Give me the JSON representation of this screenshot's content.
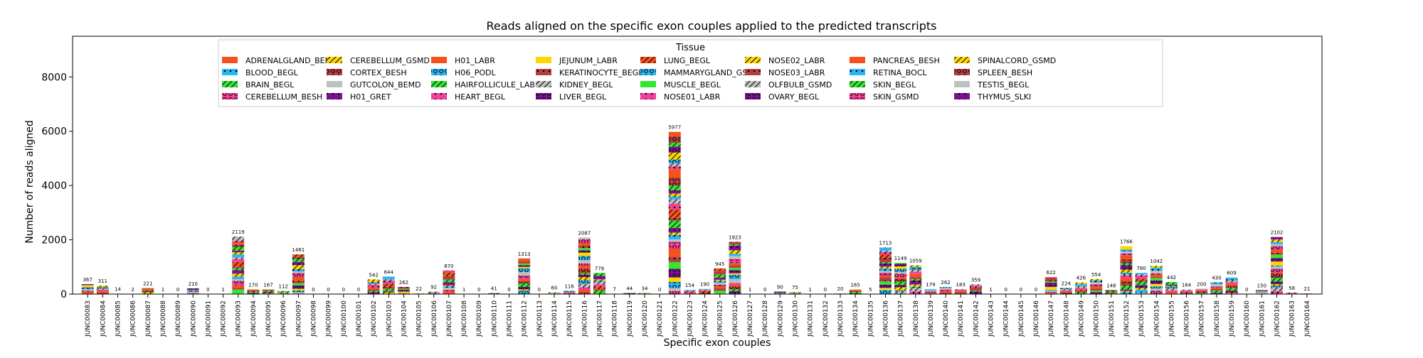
{
  "chart_data": {
    "type": "bar",
    "stacked": true,
    "title": "Reads aligned on the specific exon couples applied to the predicted transcripts",
    "xlabel": "Specific exon couples",
    "ylabel": "Number of reads aligned",
    "ylim": [
      0,
      9500
    ],
    "yticks": [
      0,
      2000,
      4000,
      6000,
      8000
    ],
    "grid": false,
    "legend": {
      "title": "Tissue",
      "placement": "top-center",
      "columns": 9,
      "entries": [
        {
          "name": "ADRENALGLAND_BEMD",
          "color": "#f4511e",
          "hatch": "none"
        },
        {
          "name": "BLOOD_BEGL",
          "color": "#29b6f6",
          "hatch": "dot"
        },
        {
          "name": "BRAIN_BEGL",
          "color": "#33e633",
          "hatch": "slash"
        },
        {
          "name": "CEREBELLUM_BESH",
          "color": "#f43f9a",
          "hatch": "circle"
        },
        {
          "name": "CEREBELLUM_GSMD",
          "color": "#ffd600",
          "hatch": "slash"
        },
        {
          "name": "CORTEX_BESH",
          "color": "#b53f3f",
          "hatch": "circle"
        },
        {
          "name": "GUTCOLON_BEMD",
          "color": "#c0c0c0",
          "hatch": "none"
        },
        {
          "name": "H01_GRET",
          "color": "#7b1192",
          "hatch": "dot"
        },
        {
          "name": "H01_LABR",
          "color": "#f4511e",
          "hatch": "none"
        },
        {
          "name": "H06_PODL",
          "color": "#29b6f6",
          "hatch": "circle"
        },
        {
          "name": "HAIRFOLLICULE_LABR",
          "color": "#33e633",
          "hatch": "slash"
        },
        {
          "name": "HEART_BEGL",
          "color": "#f43f9a",
          "hatch": "dot"
        },
        {
          "name": "JEJUNUM_LABR",
          "color": "#ffd600",
          "hatch": "none"
        },
        {
          "name": "KERATINOCYTE_BEGL",
          "color": "#b53f3f",
          "hatch": "dot"
        },
        {
          "name": "KIDNEY_BEGL",
          "color": "#c0c0c0",
          "hatch": "slash"
        },
        {
          "name": "LIVER_BEGL",
          "color": "#7b1192",
          "hatch": "circle"
        },
        {
          "name": "LUNG_BEGL",
          "color": "#f4511e",
          "hatch": "slash"
        },
        {
          "name": "MAMMARYGLAND_GSMD",
          "color": "#29b6f6",
          "hatch": "circle"
        },
        {
          "name": "MUSCLE_BEGL",
          "color": "#33e633",
          "hatch": "none"
        },
        {
          "name": "NOSE01_LABR",
          "color": "#f43f9a",
          "hatch": "dot"
        },
        {
          "name": "NOSE02_LABR",
          "color": "#ffd600",
          "hatch": "slash"
        },
        {
          "name": "NOSE03_LABR",
          "color": "#b53f3f",
          "hatch": "dot"
        },
        {
          "name": "OLFBULB_GSMD",
          "color": "#c0c0c0",
          "hatch": "slash"
        },
        {
          "name": "OVARY_BEGL",
          "color": "#7b1192",
          "hatch": "circle"
        },
        {
          "name": "PANCREAS_BESH",
          "color": "#f4511e",
          "hatch": "none"
        },
        {
          "name": "RETINA_BOCL",
          "color": "#29b6f6",
          "hatch": "dot"
        },
        {
          "name": "SKIN_BEGL",
          "color": "#33e633",
          "hatch": "slash"
        },
        {
          "name": "SKIN_GSMD",
          "color": "#f43f9a",
          "hatch": "circle"
        },
        {
          "name": "SPINALCORD_GSMD",
          "color": "#ffd600",
          "hatch": "slash"
        },
        {
          "name": "SPLEEN_BESH",
          "color": "#b53f3f",
          "hatch": "circle"
        },
        {
          "name": "TESTIS_BEGL",
          "color": "#c0c0c0",
          "hatch": "none"
        },
        {
          "name": "THYMUS_SLKI",
          "color": "#7b1192",
          "hatch": "dot"
        }
      ]
    },
    "categories": [
      "JUNC00083",
      "JUNC00084",
      "JUNC00085",
      "JUNC00086",
      "JUNC00087",
      "JUNC00088",
      "JUNC00089",
      "JUNC00090",
      "JUNC00091",
      "JUNC00092",
      "JUNC00093",
      "JUNC00094",
      "JUNC00095",
      "JUNC00096",
      "JUNC00097",
      "JUNC00098",
      "JUNC00099",
      "JUNC00100",
      "JUNC00101",
      "JUNC00102",
      "JUNC00103",
      "JUNC00104",
      "JUNC00105",
      "JUNC00106",
      "JUNC00107",
      "JUNC00108",
      "JUNC00109",
      "JUNC00110",
      "JUNC00111",
      "JUNC00112",
      "JUNC00113",
      "JUNC00114",
      "JUNC00115",
      "JUNC00116",
      "JUNC00117",
      "JUNC00118",
      "JUNC00119",
      "JUNC00120",
      "JUNC00121",
      "JUNC00122",
      "JUNC00123",
      "JUNC00124",
      "JUNC00125",
      "JUNC00126",
      "JUNC00127",
      "JUNC00128",
      "JUNC00129",
      "JUNC00130",
      "JUNC00131",
      "JUNC00132",
      "JUNC00133",
      "JUNC00134",
      "JUNC00135",
      "JUNC00136",
      "JUNC00137",
      "JUNC00138",
      "JUNC00139",
      "JUNC00140",
      "JUNC00141",
      "JUNC00142",
      "JUNC00143",
      "JUNC00144",
      "JUNC00145",
      "JUNC00146",
      "JUNC00147",
      "JUNC00148",
      "JUNC00149",
      "JUNC00150",
      "JUNC00151",
      "JUNC00152",
      "JUNC00153",
      "JUNC00154",
      "JUNC00155",
      "JUNC00156",
      "JUNC00157",
      "JUNC00158",
      "JUNC00159",
      "JUNC00160",
      "JUNC00161",
      "JUNC00162",
      "JUNC00163",
      "JUNC00164"
    ],
    "totals": [
      367,
      311,
      14,
      2,
      221,
      1,
      0,
      210,
      0,
      1,
      2119,
      170,
      167,
      112,
      1461,
      0,
      0,
      0,
      0,
      542,
      644,
      262,
      22,
      92,
      870,
      1,
      0,
      41,
      0,
      1313,
      0,
      60,
      116,
      2087,
      778,
      7,
      44,
      34,
      0,
      5977,
      154,
      190,
      945,
      1923,
      1,
      0,
      90,
      75,
      1,
      0,
      20,
      165,
      5,
      1713,
      1149,
      1059,
      179,
      262,
      183,
      359,
      1,
      0,
      0,
      0,
      622,
      224,
      426,
      554,
      148,
      1766,
      780,
      1042,
      442,
      164,
      200,
      430,
      609,
      0,
      150,
      2102,
      58,
      21
    ]
  }
}
